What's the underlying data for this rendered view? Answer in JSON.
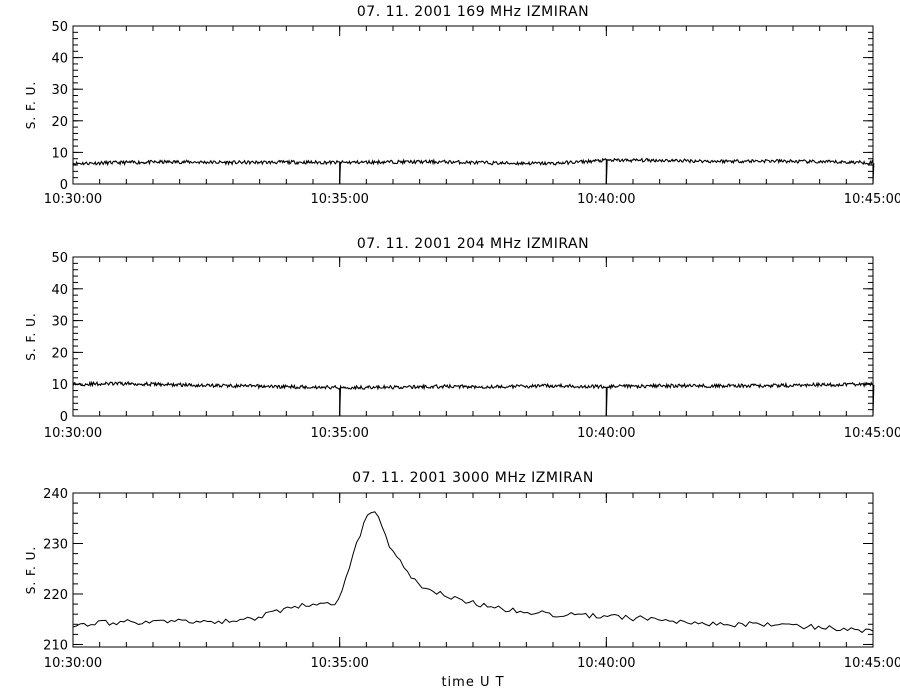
{
  "chart_data": [
    {
      "type": "line",
      "title": "07.  11.  2001    169 MHz    IZMIRAN",
      "ylabel": "S. F. U.",
      "xlabel": "",
      "xlim": [
        "10:30:00",
        "10:45:00"
      ],
      "xticks": [
        "10:30:00",
        "10:35:00",
        "10:40:00",
        "10:45:00"
      ],
      "ylim": [
        0,
        50
      ],
      "yticks": [
        "0",
        "10",
        "20",
        "30",
        "40",
        "50"
      ],
      "grid": false,
      "series": [
        {
          "x": [
            "10:30:00",
            "10:31:00",
            "10:32:00",
            "10:33:00",
            "10:34:00",
            "10:35:00",
            "10:36:00",
            "10:37:00",
            "10:38:00",
            "10:39:00",
            "10:40:00",
            "10:41:00",
            "10:42:00",
            "10:43:00",
            "10:44:00",
            "10:45:00"
          ],
          "values": [
            6.5,
            6.8,
            7.0,
            6.8,
            6.9,
            6.8,
            7.0,
            7.0,
            6.6,
            6.5,
            7.5,
            7.5,
            7.2,
            7.3,
            7.0,
            6.8
          ],
          "dropouts": [
            "10:35:00",
            "10:40:00",
            "10:45:00"
          ]
        }
      ]
    },
    {
      "type": "line",
      "title": "07.  11.  2001    204 MHz    IZMIRAN",
      "ylabel": "S. F. U.",
      "xlabel": "",
      "xlim": [
        "10:30:00",
        "10:45:00"
      ],
      "xticks": [
        "10:30:00",
        "10:35:00",
        "10:40:00",
        "10:45:00"
      ],
      "ylim": [
        0,
        50
      ],
      "yticks": [
        "0",
        "10",
        "20",
        "30",
        "40",
        "50"
      ],
      "grid": false,
      "series": [
        {
          "x": [
            "10:30:00",
            "10:31:00",
            "10:32:00",
            "10:33:00",
            "10:34:00",
            "10:35:00",
            "10:36:00",
            "10:37:00",
            "10:38:00",
            "10:39:00",
            "10:40:00",
            "10:41:00",
            "10:42:00",
            "10:43:00",
            "10:44:00",
            "10:45:00"
          ],
          "values": [
            10.0,
            10.2,
            9.8,
            9.5,
            9.2,
            9.0,
            9.0,
            9.3,
            9.2,
            9.5,
            9.2,
            9.5,
            9.5,
            9.5,
            9.8,
            10.0
          ],
          "dropouts": [
            "10:35:00",
            "10:40:00",
            "10:45:00"
          ]
        }
      ]
    },
    {
      "type": "line",
      "title": "07.  11.  2001    3000 MHz    IZMIRAN",
      "ylabel": "S. F. U.",
      "xlabel": "time   U T",
      "xlim": [
        "10:30:00",
        "10:45:00"
      ],
      "xticks": [
        "10:30:00",
        "10:35:00",
        "10:40:00",
        "10:45:00"
      ],
      "ylim": [
        209.5,
        240
      ],
      "yticks": [
        "210",
        "220",
        "230",
        "240"
      ],
      "grid": false,
      "series": [
        {
          "x": [
            "10:30:00",
            "10:31:00",
            "10:32:00",
            "10:33:00",
            "10:33:30",
            "10:34:00",
            "10:34:30",
            "10:35:00",
            "10:35:15",
            "10:35:30",
            "10:35:40",
            "10:36:00",
            "10:36:30",
            "10:37:00",
            "10:38:00",
            "10:39:00",
            "10:40:00",
            "10:41:00",
            "10:42:00",
            "10:43:00",
            "10:44:00",
            "10:45:00"
          ],
          "values": [
            214,
            214.5,
            214.5,
            214.5,
            215.5,
            217,
            218,
            218.5,
            228,
            235,
            236.5,
            228,
            221.5,
            219.5,
            217,
            216,
            215.5,
            215,
            214,
            214,
            213.5,
            212.5
          ]
        }
      ]
    }
  ]
}
